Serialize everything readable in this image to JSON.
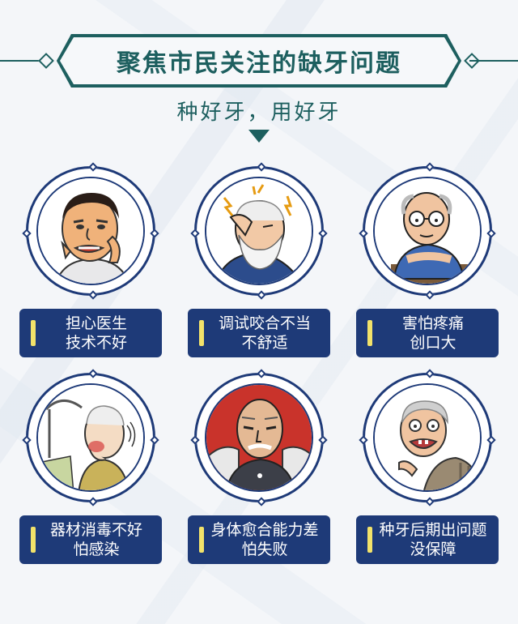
{
  "header": {
    "title": "聚焦市民关注的缺牙问题",
    "subtitle": "种好牙，用好牙"
  },
  "cards": [
    {
      "line1": "担心医生",
      "line2": "技术不好",
      "illustration": "worried-man-toothache-icon"
    },
    {
      "line1": "调试咬合不当",
      "line2": "不舒适",
      "illustration": "elderly-man-headache-icon"
    },
    {
      "line1": "害怕疼痛",
      "line2": "创口大",
      "illustration": "elderly-man-glasses-icon"
    },
    {
      "line1": "器材消毒不好",
      "line2": "怕感染",
      "illustration": "patient-dental-chair-icon"
    },
    {
      "line1": "身体愈合能力差",
      "line2": "怕失败",
      "illustration": "elderly-man-seated-icon"
    },
    {
      "line1": "种牙后期出问题",
      "line2": "没保障",
      "illustration": "elderly-woman-missing-teeth-icon"
    }
  ],
  "colors": {
    "accent": "#1d5f5f",
    "card": "#1e3a78",
    "bar": "#f2e26a"
  }
}
